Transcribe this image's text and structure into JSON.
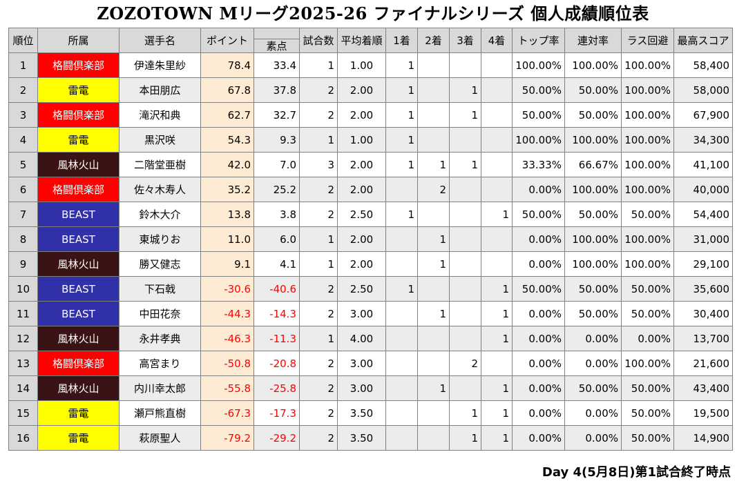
{
  "title": "ZOZOTOWN Mリーグ2025-26 ファイナルシリーズ 個人成績順位表",
  "footer": "Day 4(5月8日)第1試合終了時点",
  "headers": {
    "rank": "順位",
    "team": "所属",
    "player": "選手名",
    "points": "ポイント",
    "raw": "素点",
    "games": "試合数",
    "avg": "平均着順",
    "first": "1着",
    "second": "2着",
    "third": "3着",
    "fourth": "4着",
    "top_rate": "トップ率",
    "rentai": "連対率",
    "last_avoid": "ラス回避",
    "high": "最高スコア"
  },
  "team_colors": {
    "格闘倶楽部": "#ff0000",
    "雷電": "#ffff00",
    "風林火山": "#3a1414",
    "BEAST": "#3030a8"
  },
  "rows": [
    {
      "rank": "1",
      "team": "格闘倶楽部",
      "player": "伊達朱里紗",
      "points": "78.4",
      "raw": "33.4",
      "games": "1",
      "avg": "1.00",
      "first": "1",
      "second": "",
      "third": "",
      "fourth": "",
      "top_rate": "100.00%",
      "rentai": "100.00%",
      "last_avoid": "100.00%",
      "high": "58,400"
    },
    {
      "rank": "2",
      "team": "雷電",
      "player": "本田朋広",
      "points": "67.8",
      "raw": "37.8",
      "games": "2",
      "avg": "2.00",
      "first": "1",
      "second": "",
      "third": "1",
      "fourth": "",
      "top_rate": "50.00%",
      "rentai": "50.00%",
      "last_avoid": "100.00%",
      "high": "58,000"
    },
    {
      "rank": "3",
      "team": "格闘倶楽部",
      "player": "滝沢和典",
      "points": "62.7",
      "raw": "32.7",
      "games": "2",
      "avg": "2.00",
      "first": "1",
      "second": "",
      "third": "1",
      "fourth": "",
      "top_rate": "50.00%",
      "rentai": "50.00%",
      "last_avoid": "100.00%",
      "high": "67,900"
    },
    {
      "rank": "4",
      "team": "雷電",
      "player": "黒沢咲",
      "points": "54.3",
      "raw": "9.3",
      "games": "1",
      "avg": "1.00",
      "first": "1",
      "second": "",
      "third": "",
      "fourth": "",
      "top_rate": "100.00%",
      "rentai": "100.00%",
      "last_avoid": "100.00%",
      "high": "34,300"
    },
    {
      "rank": "5",
      "team": "風林火山",
      "player": "二階堂亜樹",
      "points": "42.0",
      "raw": "7.0",
      "games": "3",
      "avg": "2.00",
      "first": "1",
      "second": "1",
      "third": "1",
      "fourth": "",
      "top_rate": "33.33%",
      "rentai": "66.67%",
      "last_avoid": "100.00%",
      "high": "41,100"
    },
    {
      "rank": "6",
      "team": "格闘倶楽部",
      "player": "佐々木寿人",
      "points": "35.2",
      "raw": "25.2",
      "games": "2",
      "avg": "2.00",
      "first": "",
      "second": "2",
      "third": "",
      "fourth": "",
      "top_rate": "0.00%",
      "rentai": "100.00%",
      "last_avoid": "100.00%",
      "high": "40,000"
    },
    {
      "rank": "7",
      "team": "BEAST",
      "player": "鈴木大介",
      "points": "13.8",
      "raw": "3.8",
      "games": "2",
      "avg": "2.50",
      "first": "1",
      "second": "",
      "third": "",
      "fourth": "1",
      "top_rate": "50.00%",
      "rentai": "50.00%",
      "last_avoid": "50.00%",
      "high": "54,400"
    },
    {
      "rank": "8",
      "team": "BEAST",
      "player": "東城りお",
      "points": "11.0",
      "raw": "6.0",
      "games": "1",
      "avg": "2.00",
      "first": "",
      "second": "1",
      "third": "",
      "fourth": "",
      "top_rate": "0.00%",
      "rentai": "100.00%",
      "last_avoid": "100.00%",
      "high": "31,000"
    },
    {
      "rank": "9",
      "team": "風林火山",
      "player": "勝又健志",
      "points": "9.1",
      "raw": "4.1",
      "games": "1",
      "avg": "2.00",
      "first": "",
      "second": "1",
      "third": "",
      "fourth": "",
      "top_rate": "0.00%",
      "rentai": "100.00%",
      "last_avoid": "100.00%",
      "high": "29,100"
    },
    {
      "rank": "10",
      "team": "BEAST",
      "player": "下石戟",
      "points": "-30.6",
      "raw": "-40.6",
      "games": "2",
      "avg": "2.50",
      "first": "1",
      "second": "",
      "third": "",
      "fourth": "1",
      "top_rate": "50.00%",
      "rentai": "50.00%",
      "last_avoid": "50.00%",
      "high": "35,600"
    },
    {
      "rank": "11",
      "team": "BEAST",
      "player": "中田花奈",
      "points": "-44.3",
      "raw": "-14.3",
      "games": "2",
      "avg": "3.00",
      "first": "",
      "second": "1",
      "third": "",
      "fourth": "1",
      "top_rate": "0.00%",
      "rentai": "50.00%",
      "last_avoid": "50.00%",
      "high": "30,400"
    },
    {
      "rank": "12",
      "team": "風林火山",
      "player": "永井孝典",
      "points": "-46.3",
      "raw": "-11.3",
      "games": "1",
      "avg": "4.00",
      "first": "",
      "second": "",
      "third": "",
      "fourth": "1",
      "top_rate": "0.00%",
      "rentai": "0.00%",
      "last_avoid": "0.00%",
      "high": "13,700"
    },
    {
      "rank": "13",
      "team": "格闘倶楽部",
      "player": "高宮まり",
      "points": "-50.8",
      "raw": "-20.8",
      "games": "2",
      "avg": "3.00",
      "first": "",
      "second": "",
      "third": "2",
      "fourth": "",
      "top_rate": "0.00%",
      "rentai": "0.00%",
      "last_avoid": "100.00%",
      "high": "21,600"
    },
    {
      "rank": "14",
      "team": "風林火山",
      "player": "内川幸太郎",
      "points": "-55.8",
      "raw": "-25.8",
      "games": "2",
      "avg": "3.00",
      "first": "",
      "second": "1",
      "third": "",
      "fourth": "1",
      "top_rate": "0.00%",
      "rentai": "50.00%",
      "last_avoid": "50.00%",
      "high": "43,400"
    },
    {
      "rank": "15",
      "team": "雷電",
      "player": "瀬戸熊直樹",
      "points": "-67.3",
      "raw": "-17.3",
      "games": "2",
      "avg": "3.50",
      "first": "",
      "second": "",
      "third": "1",
      "fourth": "1",
      "top_rate": "0.00%",
      "rentai": "0.00%",
      "last_avoid": "50.00%",
      "high": "19,500"
    },
    {
      "rank": "16",
      "team": "雷電",
      "player": "萩原聖人",
      "points": "-79.2",
      "raw": "-29.2",
      "games": "2",
      "avg": "3.50",
      "first": "",
      "second": "",
      "third": "1",
      "fourth": "1",
      "top_rate": "0.00%",
      "rentai": "0.00%",
      "last_avoid": "50.00%",
      "high": "14,900"
    }
  ]
}
